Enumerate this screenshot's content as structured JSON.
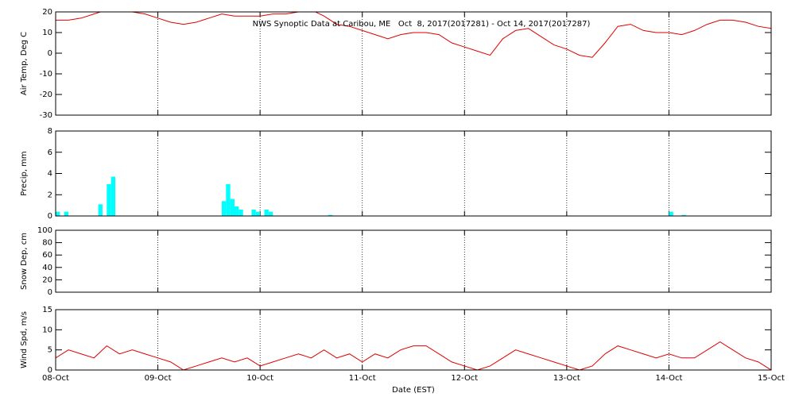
{
  "chart_data": [
    {
      "type": "line",
      "title": "NWS Synoptic Data at Caribou, ME   Oct  8, 2017(2017281) - Oct 14, 2017(2017287)",
      "ylabel": "Air Temp, Deg C",
      "ylim": [
        -30,
        20
      ],
      "yticks": [
        -30,
        -20,
        -10,
        0,
        10,
        20
      ],
      "x": [
        0,
        3,
        6,
        9,
        12,
        15,
        18,
        21,
        24,
        27,
        30,
        33,
        36,
        39,
        42,
        45,
        48,
        51,
        54,
        57,
        60,
        63,
        66,
        69,
        72,
        75,
        78,
        81,
        84,
        87,
        90,
        93,
        96,
        99,
        102,
        105,
        108,
        111,
        114,
        117,
        120,
        123,
        126,
        129,
        132,
        135,
        138,
        141,
        144,
        147,
        150,
        153,
        156,
        159,
        162,
        165,
        168
      ],
      "series": [
        {
          "color": "#e00000",
          "values": [
            16,
            16,
            17,
            19,
            21,
            21,
            20,
            19,
            17,
            15,
            14,
            15,
            17,
            19,
            18,
            18,
            18,
            19,
            19,
            20,
            21,
            18,
            14,
            13,
            11,
            9,
            7,
            9,
            10,
            10,
            9,
            5,
            3,
            1,
            -1,
            7,
            11,
            12,
            8,
            4,
            2,
            -1,
            -2,
            5,
            13,
            14,
            11,
            10,
            10,
            9,
            11,
            14,
            16,
            16,
            15,
            13,
            12
          ]
        }
      ]
    },
    {
      "type": "bar",
      "ylabel": "Precip, mm",
      "ylim": [
        0,
        8
      ],
      "yticks": [
        0,
        2,
        4,
        6,
        8
      ],
      "x": [
        0.5,
        2.5,
        10.5,
        12.5,
        13.5,
        39.5,
        40.5,
        41.5,
        42.5,
        43.5,
        46.5,
        47.5,
        49.5,
        50.5,
        64.5,
        144.5,
        147.5
      ],
      "series": [
        {
          "color": "#00ffff",
          "values": [
            0.4,
            0.4,
            1.1,
            3.0,
            3.7,
            1.4,
            3.0,
            1.6,
            0.9,
            0.6,
            0.6,
            0.4,
            0.6,
            0.4,
            0.1,
            0.4,
            0.1
          ]
        }
      ]
    },
    {
      "type": "line",
      "ylabel": "Snow Dep, cm",
      "ylim": [
        0,
        100
      ],
      "yticks": [
        0,
        20,
        40,
        60,
        80,
        100
      ]
    },
    {
      "type": "line",
      "ylabel": "Wind Spd, m/s",
      "ylim": [
        0,
        15
      ],
      "yticks": [
        0,
        5,
        10,
        15
      ],
      "xlabel": "Date (EST)",
      "xlim": [
        0,
        168
      ],
      "xticks": [
        {
          "value": 0,
          "label": "08-Oct"
        },
        {
          "value": 24,
          "label": "09-Oct"
        },
        {
          "value": 48,
          "label": "10-Oct"
        },
        {
          "value": 72,
          "label": "11-Oct"
        },
        {
          "value": 96,
          "label": "12-Oct"
        },
        {
          "value": 120,
          "label": "13-Oct"
        },
        {
          "value": 144,
          "label": "14-Oct"
        },
        {
          "value": 168,
          "label": "15-Oct"
        }
      ],
      "x": [
        0,
        3,
        6,
        9,
        12,
        15,
        18,
        21,
        24,
        27,
        30,
        33,
        36,
        39,
        42,
        45,
        48,
        51,
        54,
        57,
        60,
        63,
        66,
        69,
        72,
        75,
        78,
        81,
        84,
        87,
        90,
        93,
        96,
        99,
        102,
        105,
        108,
        111,
        114,
        117,
        120,
        123,
        126,
        129,
        132,
        135,
        138,
        141,
        144,
        147,
        150,
        153,
        156,
        159,
        162,
        165,
        168
      ],
      "series": [
        {
          "color": "#e00000",
          "values": [
            3,
            5,
            4,
            3,
            6,
            4,
            5,
            4,
            3,
            2,
            0,
            1,
            2,
            3,
            2,
            3,
            1,
            2,
            3,
            4,
            3,
            5,
            3,
            4,
            2,
            4,
            3,
            5,
            6,
            6,
            4,
            2,
            1,
            0,
            1,
            3,
            5,
            4,
            3,
            2,
            1,
            0,
            1,
            4,
            6,
            5,
            4,
            3,
            4,
            3,
            3,
            5,
            7,
            5,
            3,
            2,
            0
          ]
        }
      ]
    }
  ]
}
